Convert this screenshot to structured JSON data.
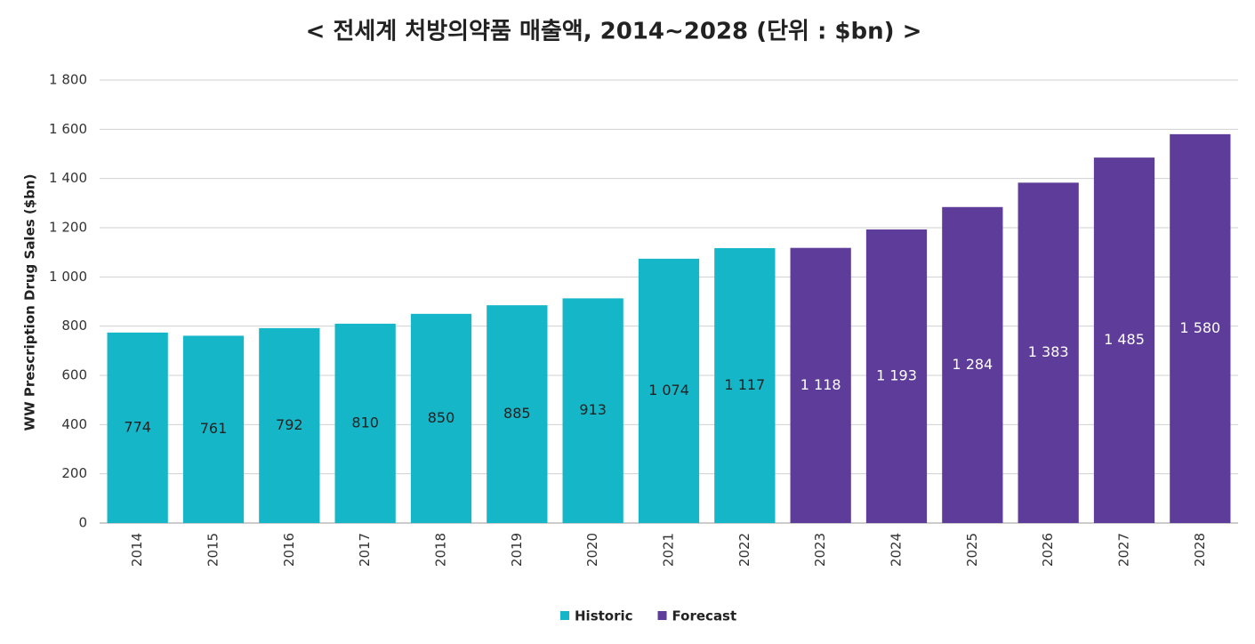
{
  "chart_data": {
    "type": "bar",
    "title": "< 전세계 처방의약품 매출액, 2014~2028 (단위 : $bn) >",
    "y_label": "WW Prescription Drug Sales ($bn)",
    "categories": [
      "2014",
      "2015",
      "2016",
      "2017",
      "2018",
      "2019",
      "2020",
      "2021",
      "2022",
      "2023",
      "2024",
      "2025",
      "2026",
      "2027",
      "2028"
    ],
    "series": [
      {
        "name": "Historic",
        "color": "#14b6c8",
        "values": [
          774,
          761,
          792,
          810,
          850,
          885,
          913,
          1074,
          1117,
          null,
          null,
          null,
          null,
          null,
          null
        ],
        "value_labels": [
          "774",
          "761",
          "792",
          "810",
          "850",
          "885",
          "913",
          "1 074",
          "1 117",
          null,
          null,
          null,
          null,
          null,
          null
        ]
      },
      {
        "name": "Forecast",
        "color": "#5e3c99",
        "values": [
          null,
          null,
          null,
          null,
          null,
          null,
          null,
          null,
          null,
          1118,
          1193,
          1284,
          1383,
          1485,
          1580
        ],
        "value_labels": [
          null,
          null,
          null,
          null,
          null,
          null,
          null,
          null,
          null,
          "1 118",
          "1 193",
          "1 284",
          "1 383",
          "1 485",
          "1 580"
        ]
      }
    ],
    "ylim": [
      0,
      1800
    ],
    "yticks": [
      0,
      200,
      400,
      600,
      800,
      {
        "value": 1000,
        "label": "1 000"
      },
      {
        "value": 1200,
        "label": "1 200"
      },
      {
        "value": 1400,
        "label": "1 400"
      },
      {
        "value": 1600,
        "label": "1 600"
      },
      {
        "value": 1800,
        "label": "1 800"
      }
    ],
    "grid": true,
    "legend": "bottom"
  }
}
